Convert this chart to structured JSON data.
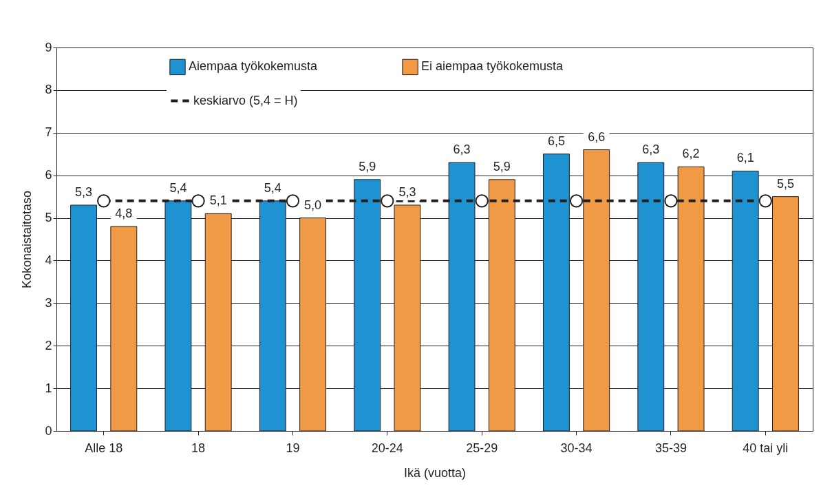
{
  "chart_data": {
    "type": "bar",
    "xlabel": "Ikä (vuotta)",
    "ylabel": "Kokonaistaitotaso",
    "categories": [
      "Alle 18",
      "18",
      "19",
      "20-24",
      "25-29",
      "30-34",
      "35-39",
      "40 tai yli"
    ],
    "series": [
      {
        "name": "Aiempaa työkokemusta",
        "color": "#1f92d1",
        "values": [
          5.3,
          5.4,
          5.4,
          5.9,
          6.3,
          6.5,
          6.3,
          6.1
        ],
        "value_labels": [
          "5,3",
          "5,4",
          "5,4",
          "5,9",
          "6,3",
          "6,5",
          "6,3",
          "6,1"
        ]
      },
      {
        "name": "Ei aiempaa työkokemusta",
        "color": "#f09a45",
        "values": [
          4.8,
          5.1,
          5.0,
          5.3,
          5.9,
          6.6,
          6.2,
          5.5
        ],
        "value_labels": [
          "4,8",
          "5,1",
          "5,0",
          "5,3",
          "5,9",
          "6,6",
          "6,2",
          "5,5"
        ]
      },
      {
        "name": "keskiarvo (5,4 = H)",
        "type": "line",
        "color": "#231f20",
        "line_style": "dashed",
        "marker": "circle",
        "values": [
          5.4,
          5.4,
          5.4,
          5.4,
          5.4,
          5.4,
          5.4,
          5.4
        ]
      }
    ],
    "ylim": [
      0,
      9
    ],
    "yticks": [
      0,
      1,
      2,
      3,
      4,
      5,
      6,
      7,
      8,
      9
    ],
    "grid": "y",
    "legend": "top"
  }
}
